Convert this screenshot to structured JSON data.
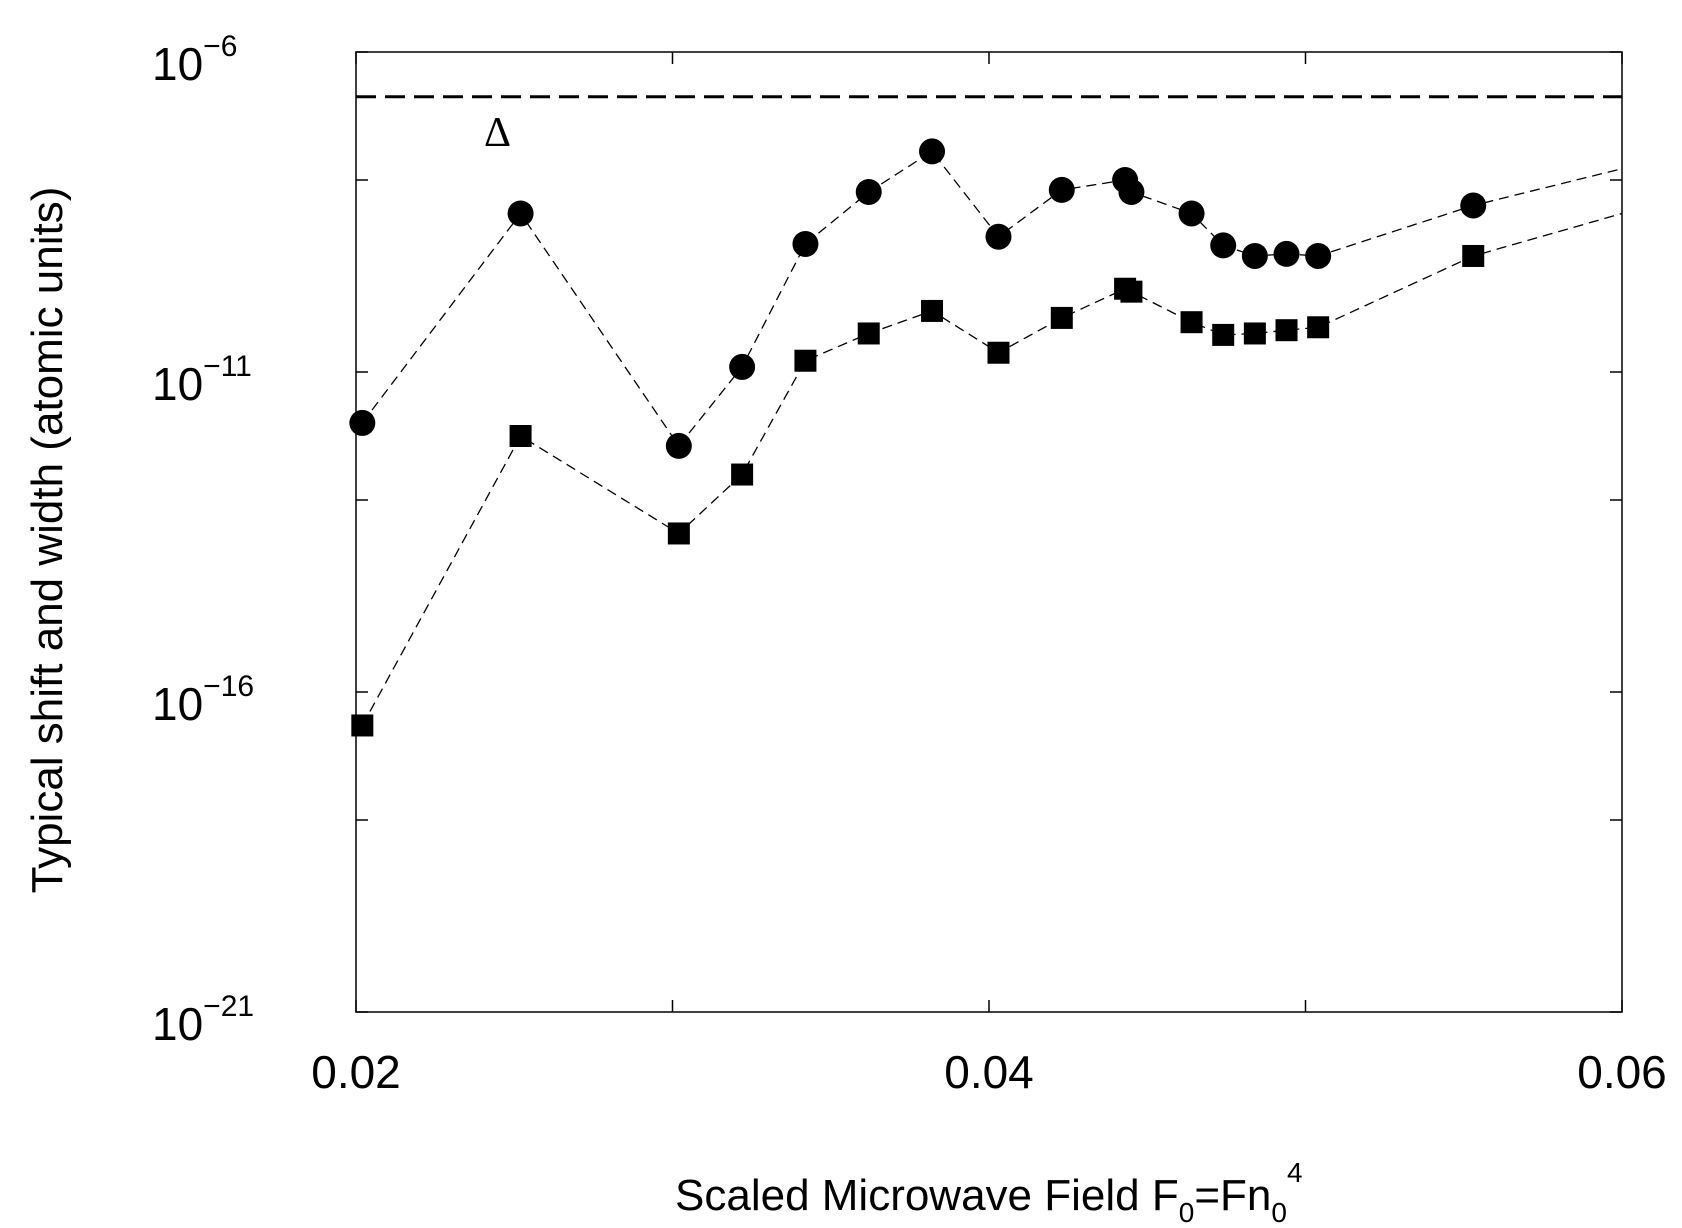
{
  "chart_data": {
    "type": "scatter",
    "xlabel": "Scaled Microwave Field F0=Fn0^4",
    "xlabel_parts": {
      "main": "Scaled Microwave Field F",
      "sub1": "0",
      "mid": "=Fn",
      "sub2": "0",
      "sup": "4"
    },
    "ylabel": "Typical shift and width (atomic units)",
    "xlim": [
      0.02,
      0.06
    ],
    "ylim": [
      1e-21,
      1e-06
    ],
    "yscale": "log",
    "grid": false,
    "legend": "none",
    "x_ticks": [
      {
        "value": 0.02,
        "label": "0.02"
      },
      {
        "value": 0.04,
        "label": "0.04"
      },
      {
        "value": 0.06,
        "label": "0.06"
      }
    ],
    "x_minor_ticks": [
      0.03,
      0.05
    ],
    "y_ticks": [
      {
        "exp": -6,
        "base": "10",
        "sup": "−6"
      },
      {
        "exp": -11,
        "base": "10",
        "sup": "−11"
      },
      {
        "exp": -16,
        "base": "10",
        "sup": "−16"
      },
      {
        "exp": -21,
        "base": "10",
        "sup": "−21"
      }
    ],
    "y_minor_ticks_exp": [
      -8,
      -13,
      -18
    ],
    "reference_line": {
      "y": 2e-07,
      "label": "Δ",
      "style": "dashed"
    },
    "series": [
      {
        "marker": "circle",
        "x": [
          0.0202,
          0.0252,
          0.0302,
          0.0322,
          0.0342,
          0.0362,
          0.0382,
          0.0403,
          0.0423,
          0.0443,
          0.0445,
          0.0464,
          0.0474,
          0.0484,
          0.0494,
          0.0504,
          0.0553
        ],
        "y": [
          1.6e-12,
          3e-09,
          7e-13,
          1.2e-11,
          1e-09,
          6.5e-09,
          2.8e-08,
          1.3e-09,
          7e-09,
          1e-08,
          6.5e-09,
          3e-09,
          9.5e-10,
          6.5e-10,
          7e-10,
          6.5e-10,
          4e-09
        ],
        "color": "#000000"
      },
      {
        "marker": "square",
        "x": [
          0.0202,
          0.0252,
          0.0302,
          0.0322,
          0.0342,
          0.0362,
          0.0382,
          0.0403,
          0.0423,
          0.0443,
          0.0445,
          0.0464,
          0.0474,
          0.0484,
          0.0494,
          0.0504,
          0.0553
        ],
        "y": [
          3e-17,
          1e-12,
          3e-14,
          2.5e-13,
          1.5e-11,
          4e-11,
          9e-11,
          2e-11,
          7e-11,
          2e-10,
          1.8e-10,
          6e-11,
          3.8e-11,
          4e-11,
          4.5e-11,
          5e-11,
          6.5e-10
        ],
        "color": "#000000"
      }
    ],
    "trend_tails": [
      {
        "series": 0,
        "x_end": 0.06,
        "y_end": 1.5e-08
      },
      {
        "series": 1,
        "x_end": 0.06,
        "y_end": 3e-09
      }
    ]
  }
}
